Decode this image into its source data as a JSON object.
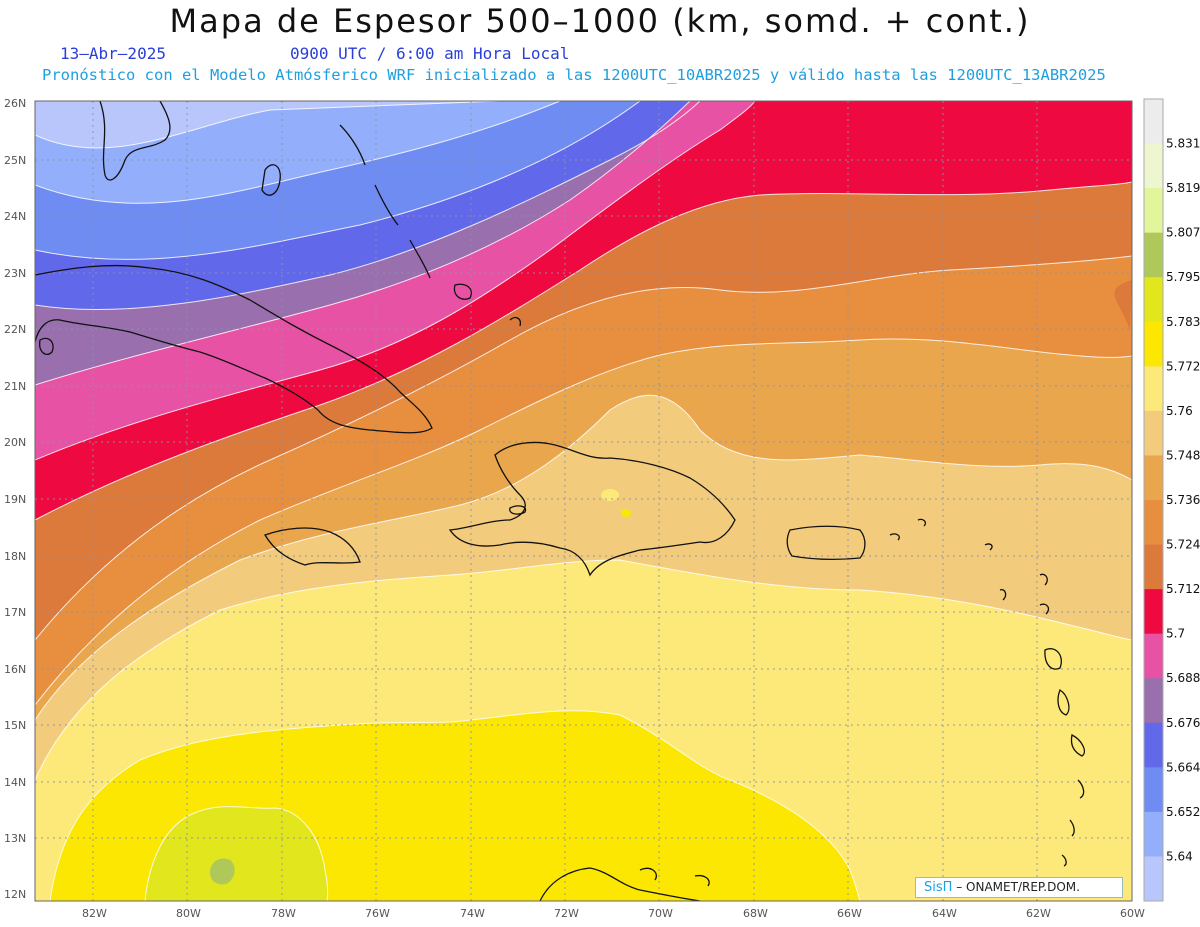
{
  "header": {
    "title": "Mapa de Espesor 500–1000 (km, somd. + cont.)",
    "date": "13–Abr–2025",
    "time": "0900 UTC / 6:00 am Hora Local",
    "description": "Pronóstico con el Modelo Atmósferico WRF inicializado a las 1200UTC_10ABR2025 y válido hasta las  1200UTC_13ABR2025"
  },
  "map": {
    "lat_labels": [
      "26N",
      "25N",
      "24N",
      "23N",
      "22N",
      "21N",
      "20N",
      "19N",
      "18N",
      "17N",
      "16N",
      "15N",
      "14N",
      "13N",
      "12N"
    ],
    "lon_labels": [
      "82W",
      "80W",
      "78W",
      "76W",
      "74W",
      "72W",
      "70W",
      "68W",
      "66W",
      "64W",
      "62W",
      "60W"
    ],
    "colors": {
      "band_5_64": "#b8c6fb",
      "band_5_652": "#93aefa",
      "band_5_664": "#6f8cf2",
      "band_5_676": "#6268ea",
      "band_5_688": "#9a6fae",
      "band_5_70": "#e852a4",
      "band_5_712": "#ee0a40",
      "band_5_724": "#dc7a3c",
      "band_5_736": "#e78e3f",
      "band_5_748": "#eaa64d",
      "band_5_76": "#f2cb7c",
      "band_5_772": "#fde97a",
      "band_5_783": "#fbe702",
      "band_5_795": "#e2e61c",
      "band_5_807": "#aec85a"
    }
  },
  "legend": {
    "labels": [
      "5.831",
      "5.819",
      "5.807",
      "5.795",
      "5.783",
      "5.772",
      "5.76",
      "5.748",
      "5.736",
      "5.724",
      "5.712",
      "5.7",
      "5.688",
      "5.676",
      "5.664",
      "5.652",
      "5.64"
    ],
    "colors": [
      "#ececec",
      "#eef6cf",
      "#e1f69a",
      "#aec85a",
      "#e2e61c",
      "#fbe702",
      "#fde97a",
      "#f2cb7c",
      "#eaa64d",
      "#e78e3f",
      "#dc7a3c",
      "#ee0a40",
      "#e852a4",
      "#9a6fae",
      "#6268ea",
      "#6f8cf2",
      "#93aefa",
      "#b8c6fb"
    ]
  },
  "credit": {
    "brand": "SisΠ",
    "text": " – ONAMET/REP.DOM."
  }
}
